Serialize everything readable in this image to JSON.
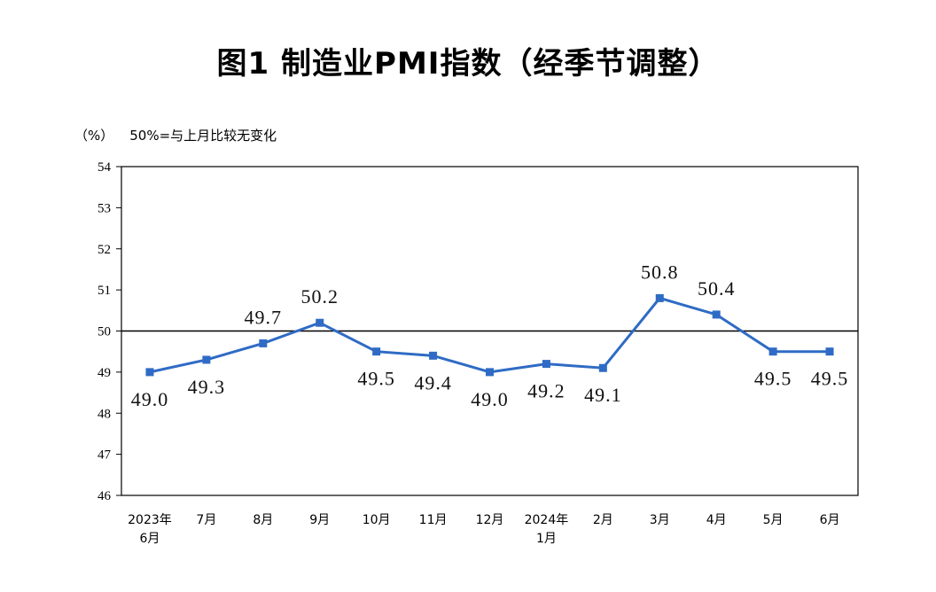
{
  "chart_data": {
    "type": "line",
    "title": "图1  制造业PMI指数（经季节调整）",
    "unit_label": "（%）",
    "reference_label": "50%=与上月比较无变化",
    "reference_value": 50,
    "ylim": [
      46,
      54
    ],
    "yticks": [
      "54",
      "53",
      "52",
      "51",
      "50",
      "49",
      "48",
      "47",
      "46"
    ],
    "categories": [
      "2023年|6月",
      "7月",
      "8月",
      "9月",
      "10月",
      "11月",
      "12月",
      "2024年|1月",
      "2月",
      "3月",
      "4月",
      "5月",
      "6月"
    ],
    "values": [
      49.0,
      49.3,
      49.7,
      50.2,
      49.5,
      49.4,
      49.0,
      49.2,
      49.1,
      50.8,
      50.4,
      49.5,
      49.5
    ],
    "value_labels": [
      "49.0",
      "49.3",
      "49.7",
      "50.2",
      "49.5",
      "49.4",
      "49.0",
      "49.2",
      "49.1",
      "50.8",
      "50.4",
      "49.5",
      "49.5"
    ],
    "label_position": [
      "below",
      "below",
      "above",
      "above",
      "below",
      "below",
      "below",
      "below",
      "below",
      "above",
      "above",
      "below",
      "below"
    ],
    "line_color": "#2F6BC5",
    "grid": false,
    "legend": "none"
  }
}
